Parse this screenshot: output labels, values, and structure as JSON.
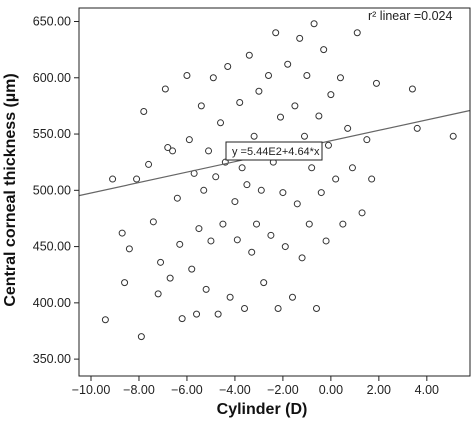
{
  "chart_data": {
    "type": "scatter",
    "xlabel": "Cylinder (D)",
    "ylabel": "Central corneal thickness (µm)",
    "xlim": [
      -10.5,
      5.8
    ],
    "ylim": [
      335,
      662
    ],
    "xticks": [
      -10,
      -8,
      -6,
      -4,
      -2,
      0,
      2,
      4
    ],
    "xtick_labels": [
      "−10.00",
      "−8.00",
      "−6.00",
      "−4.00",
      "−2.00",
      "0.00",
      "2.00",
      "4.00"
    ],
    "yticks": [
      350,
      400,
      450,
      500,
      550,
      600,
      650
    ],
    "ytick_labels": [
      "350.00",
      "400.00",
      "450.00",
      "500.00",
      "550.00",
      "600.00",
      "650.00"
    ],
    "grid": false,
    "marker": "open-circle",
    "marker_color": "#333333",
    "fit_line": {
      "intercept": 544,
      "slope": 4.64,
      "x_range": [
        -10.5,
        5.8
      ]
    },
    "fit_equation": "y =5.44E2+4.64*x",
    "r2_label": "r² linear =0.024",
    "points": [
      [
        -9.4,
        385
      ],
      [
        -9.1,
        510
      ],
      [
        -8.7,
        462
      ],
      [
        -8.6,
        418
      ],
      [
        -8.4,
        448
      ],
      [
        -8.1,
        510
      ],
      [
        -7.9,
        370
      ],
      [
        -7.8,
        570
      ],
      [
        -7.6,
        523
      ],
      [
        -7.4,
        472
      ],
      [
        -7.2,
        408
      ],
      [
        -7.1,
        436
      ],
      [
        -6.9,
        590
      ],
      [
        -6.8,
        538
      ],
      [
        -6.7,
        422
      ],
      [
        -6.6,
        535
      ],
      [
        -6.4,
        493
      ],
      [
        -6.3,
        452
      ],
      [
        -6.2,
        386
      ],
      [
        -6.0,
        602
      ],
      [
        -5.9,
        545
      ],
      [
        -5.8,
        430
      ],
      [
        -5.7,
        515
      ],
      [
        -5.6,
        390
      ],
      [
        -5.5,
        466
      ],
      [
        -5.4,
        575
      ],
      [
        -5.3,
        500
      ],
      [
        -5.2,
        412
      ],
      [
        -5.1,
        535
      ],
      [
        -5.0,
        455
      ],
      [
        -4.9,
        600
      ],
      [
        -4.8,
        512
      ],
      [
        -4.7,
        390
      ],
      [
        -4.6,
        560
      ],
      [
        -4.5,
        470
      ],
      [
        -4.4,
        525
      ],
      [
        -4.3,
        610
      ],
      [
        -4.2,
        405
      ],
      [
        -4.1,
        540
      ],
      [
        -4.0,
        490
      ],
      [
        -3.9,
        456
      ],
      [
        -3.8,
        578
      ],
      [
        -3.7,
        520
      ],
      [
        -3.6,
        395
      ],
      [
        -3.5,
        505
      ],
      [
        -3.4,
        620
      ],
      [
        -3.3,
        445
      ],
      [
        -3.2,
        548
      ],
      [
        -3.1,
        470
      ],
      [
        -3.0,
        588
      ],
      [
        -2.9,
        500
      ],
      [
        -2.8,
        418
      ],
      [
        -2.7,
        535
      ],
      [
        -2.6,
        602
      ],
      [
        -2.5,
        460
      ],
      [
        -2.4,
        525
      ],
      [
        -2.3,
        640
      ],
      [
        -2.2,
        395
      ],
      [
        -2.1,
        565
      ],
      [
        -2.0,
        498
      ],
      [
        -1.9,
        450
      ],
      [
        -1.8,
        612
      ],
      [
        -1.7,
        530
      ],
      [
        -1.6,
        405
      ],
      [
        -1.5,
        575
      ],
      [
        -1.4,
        488
      ],
      [
        -1.3,
        635
      ],
      [
        -1.2,
        440
      ],
      [
        -1.1,
        548
      ],
      [
        -1.0,
        602
      ],
      [
        -0.9,
        470
      ],
      [
        -0.8,
        520
      ],
      [
        -0.7,
        648
      ],
      [
        -0.6,
        395
      ],
      [
        -0.5,
        566
      ],
      [
        -0.4,
        498
      ],
      [
        -0.3,
        625
      ],
      [
        -0.2,
        455
      ],
      [
        -0.1,
        540
      ],
      [
        0.0,
        585
      ],
      [
        0.2,
        510
      ],
      [
        0.4,
        600
      ],
      [
        0.5,
        470
      ],
      [
        0.7,
        555
      ],
      [
        0.9,
        520
      ],
      [
        1.1,
        640
      ],
      [
        1.3,
        480
      ],
      [
        1.5,
        545
      ],
      [
        1.7,
        510
      ],
      [
        1.9,
        595
      ],
      [
        3.4,
        590
      ],
      [
        3.6,
        555
      ],
      [
        5.1,
        548
      ]
    ]
  }
}
